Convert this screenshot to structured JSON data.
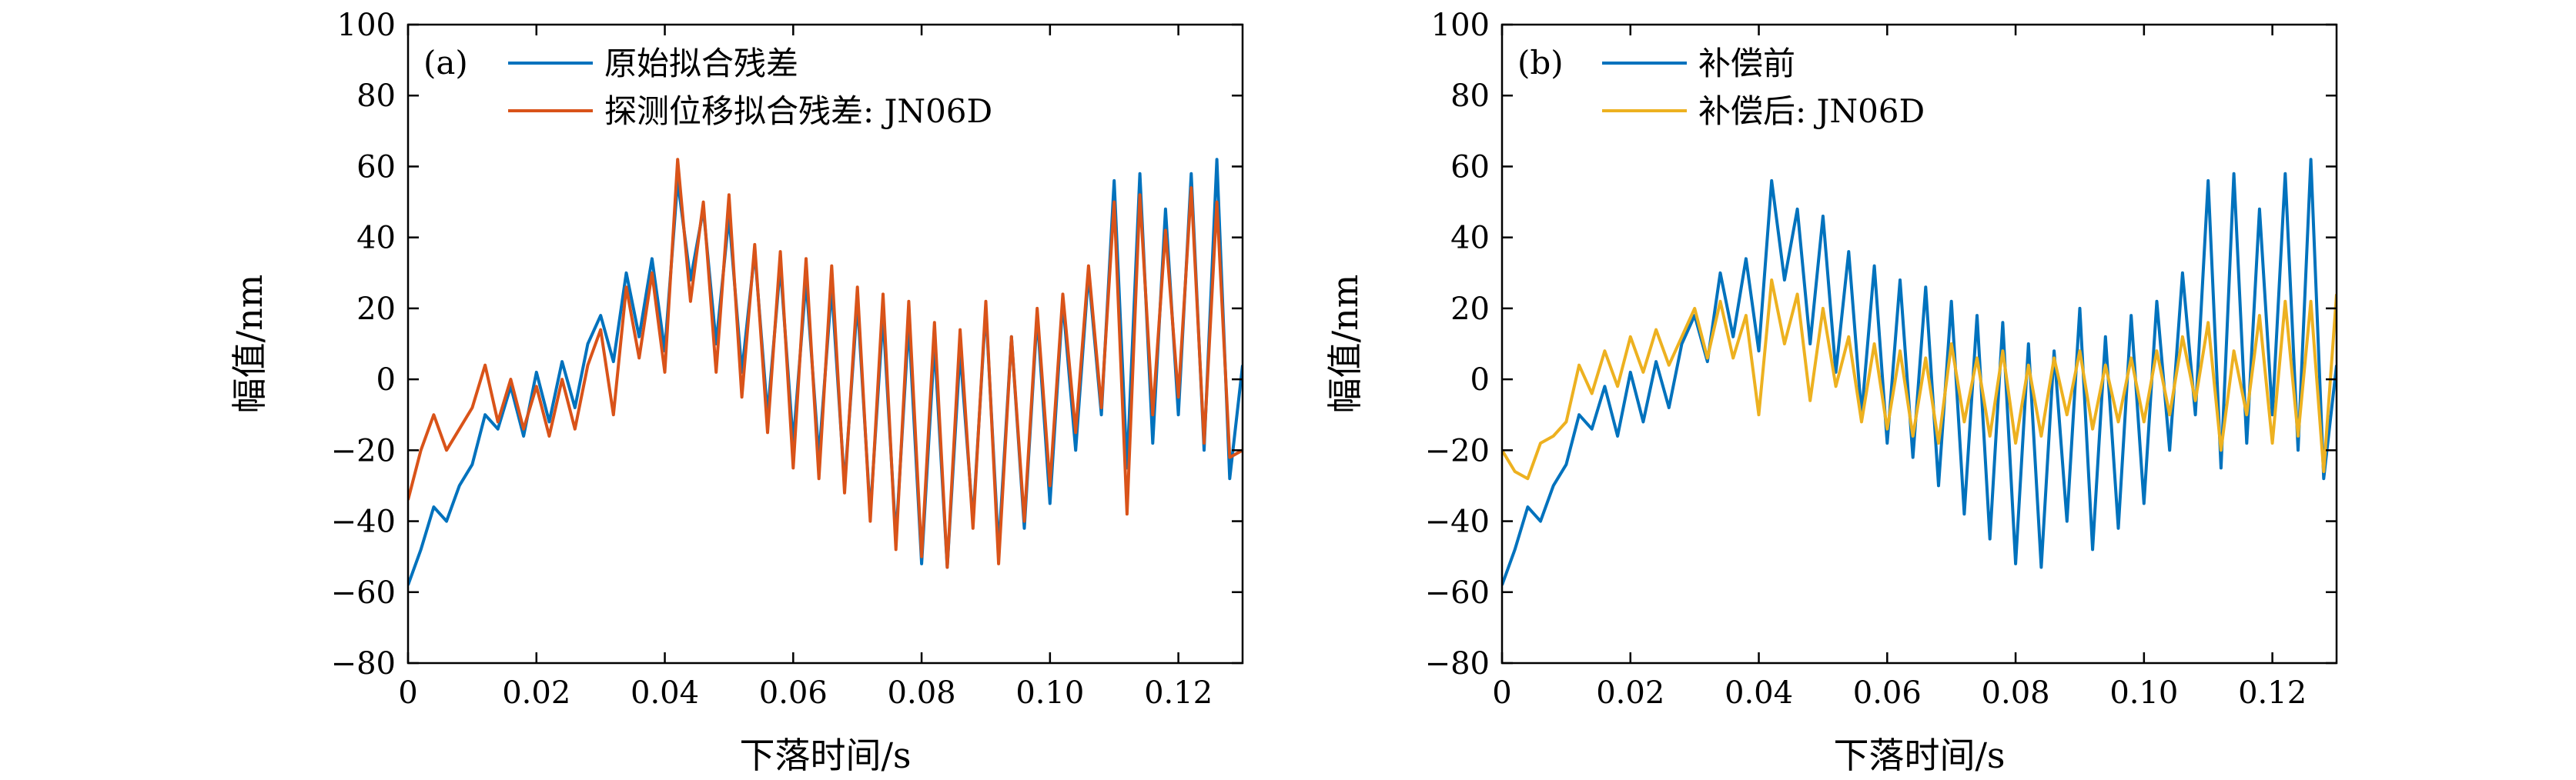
{
  "chart_data": [
    {
      "type": "line",
      "panel_label": "(a)",
      "xlabel": "下落时间/s",
      "ylabel": "幅值/nm",
      "xlim": [
        0,
        0.13
      ],
      "ylim": [
        -80,
        100
      ],
      "xticks": [
        0,
        0.02,
        0.04,
        0.06,
        0.08,
        0.1,
        0.12
      ],
      "xtick_labels": [
        "0",
        "0.02",
        "0.04",
        "0.06",
        "0.08",
        "0.10",
        "0.12"
      ],
      "yticks": [
        -80,
        -60,
        -40,
        -20,
        0,
        20,
        40,
        60,
        80,
        100
      ],
      "ytick_labels": [
        "−80",
        "−60",
        "−40",
        "−20",
        "0",
        "20",
        "40",
        "60",
        "80",
        "100"
      ],
      "legend_position": "top-left",
      "series": [
        {
          "name": "原始拟合残差",
          "color": "#0072bd",
          "x": [
            0,
            0.002,
            0.004,
            0.006,
            0.008,
            0.01,
            0.012,
            0.014,
            0.016,
            0.018,
            0.02,
            0.022,
            0.024,
            0.026,
            0.028,
            0.03,
            0.032,
            0.034,
            0.036,
            0.038,
            0.04,
            0.042,
            0.044,
            0.046,
            0.048,
            0.05,
            0.052,
            0.054,
            0.056,
            0.058,
            0.06,
            0.062,
            0.064,
            0.066,
            0.068,
            0.07,
            0.072,
            0.074,
            0.076,
            0.078,
            0.08,
            0.082,
            0.084,
            0.086,
            0.088,
            0.09,
            0.092,
            0.094,
            0.096,
            0.098,
            0.1,
            0.102,
            0.104,
            0.106,
            0.108,
            0.11,
            0.112,
            0.114,
            0.116,
            0.118,
            0.12,
            0.122,
            0.124,
            0.126,
            0.128,
            0.13
          ],
          "y": [
            -58,
            -48,
            -36,
            -40,
            -30,
            -24,
            -10,
            -14,
            -2,
            -16,
            2,
            -12,
            5,
            -8,
            10,
            18,
            5,
            30,
            12,
            34,
            8,
            56,
            28,
            48,
            10,
            46,
            2,
            36,
            -10,
            32,
            -18,
            28,
            -22,
            26,
            -30,
            22,
            -38,
            18,
            -45,
            16,
            -52,
            10,
            -53,
            8,
            -40,
            20,
            -48,
            12,
            -42,
            18,
            -35,
            22,
            -20,
            30,
            -10,
            56,
            -25,
            58,
            -18,
            48,
            -10,
            58,
            -20,
            62,
            -28,
            4
          ]
        },
        {
          "name": "探测位移拟合残差: JN06D",
          "color": "#d95319",
          "x": [
            0,
            0.002,
            0.004,
            0.006,
            0.008,
            0.01,
            0.012,
            0.014,
            0.016,
            0.018,
            0.02,
            0.022,
            0.024,
            0.026,
            0.028,
            0.03,
            0.032,
            0.034,
            0.036,
            0.038,
            0.04,
            0.042,
            0.044,
            0.046,
            0.048,
            0.05,
            0.052,
            0.054,
            0.056,
            0.058,
            0.06,
            0.062,
            0.064,
            0.066,
            0.068,
            0.07,
            0.072,
            0.074,
            0.076,
            0.078,
            0.08,
            0.082,
            0.084,
            0.086,
            0.088,
            0.09,
            0.092,
            0.094,
            0.096,
            0.098,
            0.1,
            0.102,
            0.104,
            0.106,
            0.108,
            0.11,
            0.112,
            0.114,
            0.116,
            0.118,
            0.12,
            0.122,
            0.124,
            0.126,
            0.128,
            0.13
          ],
          "y": [
            -34,
            -20,
            -10,
            -20,
            -14,
            -8,
            4,
            -12,
            0,
            -14,
            -2,
            -16,
            0,
            -14,
            4,
            14,
            -10,
            26,
            6,
            30,
            2,
            62,
            22,
            50,
            2,
            52,
            -5,
            38,
            -15,
            36,
            -25,
            34,
            -28,
            32,
            -32,
            26,
            -40,
            24,
            -48,
            22,
            -50,
            16,
            -53,
            14,
            -42,
            22,
            -52,
            12,
            -40,
            20,
            -30,
            24,
            -15,
            32,
            -8,
            50,
            -38,
            52,
            -10,
            42,
            -5,
            54,
            -18,
            50,
            -22,
            -20
          ]
        }
      ]
    },
    {
      "type": "line",
      "panel_label": "(b)",
      "xlabel": "下落时间/s",
      "ylabel": "幅值/nm",
      "xlim": [
        0,
        0.13
      ],
      "ylim": [
        -80,
        100
      ],
      "xticks": [
        0,
        0.02,
        0.04,
        0.06,
        0.08,
        0.1,
        0.12
      ],
      "xtick_labels": [
        "0",
        "0.02",
        "0.04",
        "0.06",
        "0.08",
        "0.10",
        "0.12"
      ],
      "yticks": [
        -80,
        -60,
        -40,
        -20,
        0,
        20,
        40,
        60,
        80,
        100
      ],
      "ytick_labels": [
        "−80",
        "−60",
        "−40",
        "−20",
        "0",
        "20",
        "40",
        "60",
        "80",
        "100"
      ],
      "legend_position": "top-left",
      "series": [
        {
          "name": "补偿前",
          "color": "#0072bd",
          "x": [
            0,
            0.002,
            0.004,
            0.006,
            0.008,
            0.01,
            0.012,
            0.014,
            0.016,
            0.018,
            0.02,
            0.022,
            0.024,
            0.026,
            0.028,
            0.03,
            0.032,
            0.034,
            0.036,
            0.038,
            0.04,
            0.042,
            0.044,
            0.046,
            0.048,
            0.05,
            0.052,
            0.054,
            0.056,
            0.058,
            0.06,
            0.062,
            0.064,
            0.066,
            0.068,
            0.07,
            0.072,
            0.074,
            0.076,
            0.078,
            0.08,
            0.082,
            0.084,
            0.086,
            0.088,
            0.09,
            0.092,
            0.094,
            0.096,
            0.098,
            0.1,
            0.102,
            0.104,
            0.106,
            0.108,
            0.11,
            0.112,
            0.114,
            0.116,
            0.118,
            0.12,
            0.122,
            0.124,
            0.126,
            0.128,
            0.13
          ],
          "y": [
            -58,
            -48,
            -36,
            -40,
            -30,
            -24,
            -10,
            -14,
            -2,
            -16,
            2,
            -12,
            5,
            -8,
            10,
            18,
            5,
            30,
            12,
            34,
            8,
            56,
            28,
            48,
            10,
            46,
            2,
            36,
            -10,
            32,
            -18,
            28,
            -22,
            26,
            -30,
            22,
            -38,
            18,
            -45,
            16,
            -52,
            10,
            -53,
            8,
            -40,
            20,
            -48,
            12,
            -42,
            18,
            -35,
            22,
            -20,
            30,
            -10,
            56,
            -25,
            58,
            -18,
            48,
            -10,
            58,
            -20,
            62,
            -28,
            4
          ]
        },
        {
          "name": "补偿后: JN06D",
          "color": "#edb120",
          "x": [
            0,
            0.002,
            0.004,
            0.006,
            0.008,
            0.01,
            0.012,
            0.014,
            0.016,
            0.018,
            0.02,
            0.022,
            0.024,
            0.026,
            0.028,
            0.03,
            0.032,
            0.034,
            0.036,
            0.038,
            0.04,
            0.042,
            0.044,
            0.046,
            0.048,
            0.05,
            0.052,
            0.054,
            0.056,
            0.058,
            0.06,
            0.062,
            0.064,
            0.066,
            0.068,
            0.07,
            0.072,
            0.074,
            0.076,
            0.078,
            0.08,
            0.082,
            0.084,
            0.086,
            0.088,
            0.09,
            0.092,
            0.094,
            0.096,
            0.098,
            0.1,
            0.102,
            0.104,
            0.106,
            0.108,
            0.11,
            0.112,
            0.114,
            0.116,
            0.118,
            0.12,
            0.122,
            0.124,
            0.126,
            0.128,
            0.13
          ],
          "y": [
            -20,
            -26,
            -28,
            -18,
            -16,
            -12,
            4,
            -4,
            8,
            -2,
            12,
            2,
            14,
            4,
            12,
            20,
            6,
            22,
            6,
            18,
            -10,
            28,
            10,
            24,
            -6,
            20,
            -2,
            12,
            -12,
            10,
            -14,
            8,
            -16,
            6,
            -18,
            10,
            -12,
            6,
            -16,
            8,
            -18,
            4,
            -16,
            6,
            -10,
            8,
            -14,
            4,
            -12,
            6,
            -12,
            8,
            -10,
            12,
            -6,
            16,
            -20,
            8,
            -10,
            18,
            -18,
            22,
            -16,
            22,
            -26,
            24
          ]
        }
      ]
    }
  ]
}
